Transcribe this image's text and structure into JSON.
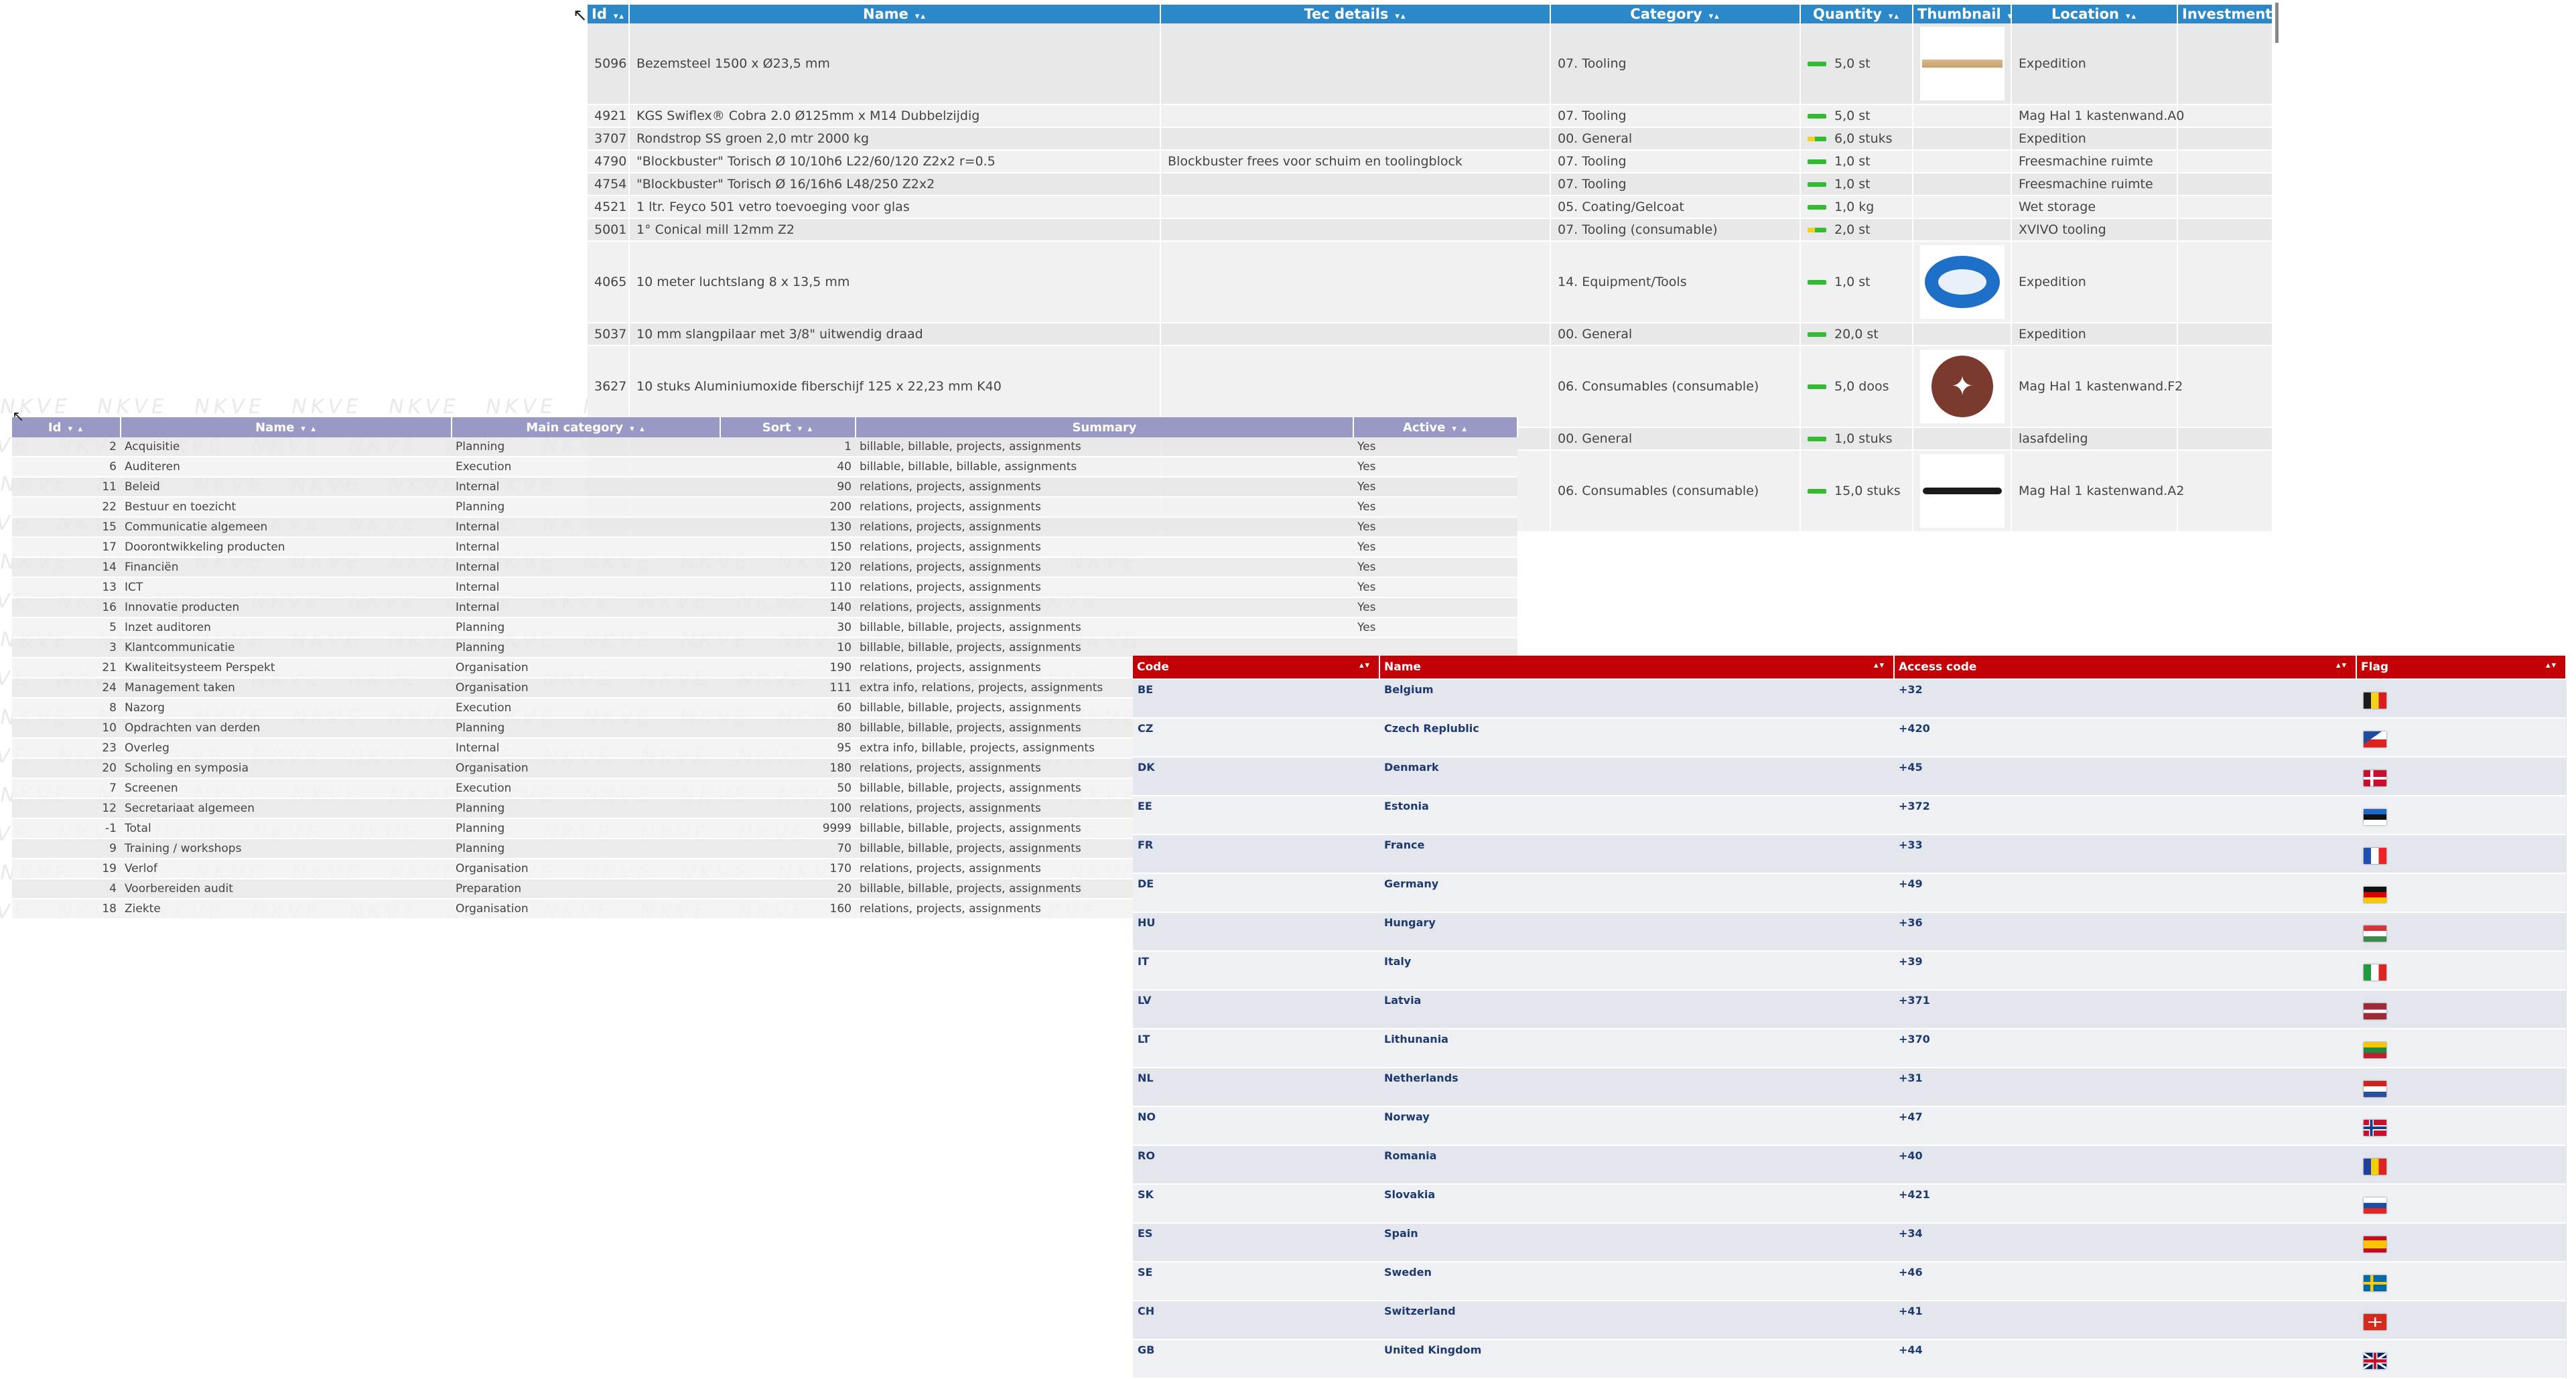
{
  "articles": {
    "headers": [
      "Id",
      "Name",
      "Tec details",
      "Category",
      "Quantity",
      "Thumbnail",
      "Location",
      "Investment"
    ],
    "rows": [
      {
        "id": "5096",
        "name": "Bezemsteel 1500 x Ø23,5 mm",
        "tec": "",
        "category": "07. Tooling",
        "qty": "5,0 st",
        "location": "Expedition",
        "thumb": "stick-image"
      },
      {
        "id": "4921",
        "name": "KGS Swiflex® Cobra 2.0 Ø125mm x M14 Dubbelzijdig",
        "tec": "",
        "category": "07. Tooling",
        "qty": "5,0 st",
        "location": "Mag Hal 1 kastenwand.A0",
        "thumb": ""
      },
      {
        "id": "3707",
        "name": "Rondstrop SS groen 2,0 mtr 2000 kg",
        "tec": "",
        "category": "00. General",
        "qty": "6,0 stuks",
        "location": "Expedition",
        "thumb": ""
      },
      {
        "id": "4790",
        "name": "\"Blockbuster\" Torisch Ø 10/10h6 L22/60/120 Z2x2 r=0.5",
        "tec": "Blockbuster frees voor schuim en toolingblock",
        "category": "07. Tooling",
        "qty": "1,0 st",
        "location": "Freesmachine ruimte",
        "thumb": ""
      },
      {
        "id": "4754",
        "name": "\"Blockbuster\" Torisch Ø 16/16h6 L48/250 Z2x2",
        "tec": "",
        "category": "07. Tooling",
        "qty": "1,0 st",
        "location": "Freesmachine ruimte",
        "thumb": ""
      },
      {
        "id": "4521",
        "name": "1 ltr. Feyco 501 vetro toevoeging voor glas",
        "tec": "",
        "category": "05. Coating/Gelcoat",
        "qty": "1,0 kg",
        "location": "Wet storage",
        "thumb": ""
      },
      {
        "id": "5001",
        "name": "1° Conical mill 12mm Z2",
        "tec": "",
        "category": "07. Tooling (consumable)",
        "qty": "2,0 st",
        "location": "XVIVO tooling",
        "thumb": ""
      },
      {
        "id": "4065",
        "name": "10 meter luchtslang 8 x 13,5 mm",
        "tec": "",
        "category": "14. Equipment/Tools",
        "qty": "1,0 st",
        "location": "Expedition",
        "thumb": "hose-image"
      },
      {
        "id": "5037",
        "name": "10 mm slangpilaar met 3/8\" uitwendig draad",
        "tec": "",
        "category": "00. General",
        "qty": "20,0 st",
        "location": "Expedition",
        "thumb": ""
      },
      {
        "id": "3627",
        "name": "10 stuks Aluminiumoxide fiberschijf 125 x 22,23 mm K40",
        "tec": "",
        "category": "06. Consumables (consumable)",
        "qty": "5,0 doos",
        "location": "Mag Hal 1 kastenwand.F2",
        "thumb": "disc-image"
      },
      {
        "id": "",
        "name": "",
        "tec": "",
        "category": "00. General",
        "qty": "1,0 stuks",
        "location": "lasafdeling",
        "thumb": ""
      },
      {
        "id": "",
        "name": "",
        "tec": "",
        "category": "06. Consumables (consumable)",
        "qty": "15,0 stuks",
        "location": "Mag Hal 1 kastenwand.A2",
        "thumb": "strip-image"
      }
    ]
  },
  "activities": {
    "headers": [
      "Id",
      "Name",
      "Main category",
      "Sort",
      "Summary",
      "Active"
    ],
    "rows": [
      {
        "id": "2",
        "name": "Acquisitie",
        "main": "Planning",
        "sort": "1",
        "summary": "billable, billable, projects, assignments",
        "active": "Yes"
      },
      {
        "id": "6",
        "name": "Auditeren",
        "main": "Execution",
        "sort": "40",
        "summary": "billable, billable, billable, assignments",
        "active": "Yes"
      },
      {
        "id": "11",
        "name": "Beleid",
        "main": "Internal",
        "sort": "90",
        "summary": "relations, projects, assignments",
        "active": "Yes"
      },
      {
        "id": "22",
        "name": "Bestuur en toezicht",
        "main": "Planning",
        "sort": "200",
        "summary": "relations, projects, assignments",
        "active": "Yes"
      },
      {
        "id": "15",
        "name": "Communicatie algemeen",
        "main": "Internal",
        "sort": "130",
        "summary": "relations, projects, assignments",
        "active": "Yes"
      },
      {
        "id": "17",
        "name": "Doorontwikkeling producten",
        "main": "Internal",
        "sort": "150",
        "summary": "relations, projects, assignments",
        "active": "Yes"
      },
      {
        "id": "14",
        "name": "Financiën",
        "main": "Internal",
        "sort": "120",
        "summary": "relations, projects, assignments",
        "active": "Yes"
      },
      {
        "id": "13",
        "name": "ICT",
        "main": "Internal",
        "sort": "110",
        "summary": "relations, projects, assignments",
        "active": "Yes"
      },
      {
        "id": "16",
        "name": "Innovatie producten",
        "main": "Internal",
        "sort": "140",
        "summary": "relations, projects, assignments",
        "active": "Yes"
      },
      {
        "id": "5",
        "name": "Inzet auditoren",
        "main": "Planning",
        "sort": "30",
        "summary": "billable, billable, projects, assignments",
        "active": "Yes"
      },
      {
        "id": "3",
        "name": "Klantcommunicatie",
        "main": "Planning",
        "sort": "10",
        "summary": "billable, billable, projects, assignments",
        "active": ""
      },
      {
        "id": "21",
        "name": "Kwaliteitsysteem Perspekt",
        "main": "Organisation",
        "sort": "190",
        "summary": "relations, projects, assignments",
        "active": ""
      },
      {
        "id": "24",
        "name": "Management taken",
        "main": "Organisation",
        "sort": "111",
        "summary": "extra info, relations, projects, assignments",
        "active": ""
      },
      {
        "id": "8",
        "name": "Nazorg",
        "main": "Execution",
        "sort": "60",
        "summary": "billable, billable, projects, assignments",
        "active": ""
      },
      {
        "id": "10",
        "name": "Opdrachten van derden",
        "main": "Planning",
        "sort": "80",
        "summary": "billable, billable, projects, assignments",
        "active": ""
      },
      {
        "id": "23",
        "name": "Overleg",
        "main": "Internal",
        "sort": "95",
        "summary": "extra info, billable, projects, assignments",
        "active": ""
      },
      {
        "id": "20",
        "name": "Scholing en symposia",
        "main": "Organisation",
        "sort": "180",
        "summary": "relations, projects, assignments",
        "active": ""
      },
      {
        "id": "7",
        "name": "Screenen",
        "main": "Execution",
        "sort": "50",
        "summary": "billable, billable, projects, assignments",
        "active": ""
      },
      {
        "id": "12",
        "name": "Secretariaat algemeen",
        "main": "Planning",
        "sort": "100",
        "summary": "relations, projects, assignments",
        "active": ""
      },
      {
        "id": "-1",
        "name": "Total",
        "main": "Planning",
        "sort": "9999",
        "summary": "billable, billable, projects, assignments",
        "active": ""
      },
      {
        "id": "9",
        "name": "Training / workshops",
        "main": "Planning",
        "sort": "70",
        "summary": "billable, billable, projects, assignments",
        "active": ""
      },
      {
        "id": "19",
        "name": "Verlof",
        "main": "Organisation",
        "sort": "170",
        "summary": "relations, projects, assignments",
        "active": ""
      },
      {
        "id": "4",
        "name": "Voorbereiden audit",
        "main": "Preparation",
        "sort": "20",
        "summary": "billable, billable, projects, assignments",
        "active": ""
      },
      {
        "id": "18",
        "name": "Ziekte",
        "main": "Organisation",
        "sort": "160",
        "summary": "relations, projects, assignments",
        "active": ""
      }
    ]
  },
  "countries": {
    "headers": [
      "Code",
      "Name",
      "Access code",
      "Flag"
    ],
    "rows": [
      {
        "code": "BE",
        "name": "Belgium",
        "access": "+32",
        "flag": "belgium-flag-icon"
      },
      {
        "code": "CZ",
        "name": "Czech Replublic",
        "access": "+420",
        "flag": "czech-flag-icon"
      },
      {
        "code": "DK",
        "name": "Denmark",
        "access": "+45",
        "flag": "denmark-flag-icon"
      },
      {
        "code": "EE",
        "name": "Estonia",
        "access": "+372",
        "flag": "estonia-flag-icon"
      },
      {
        "code": "FR",
        "name": "France",
        "access": "+33",
        "flag": "france-flag-icon"
      },
      {
        "code": "DE",
        "name": "Germany",
        "access": "+49",
        "flag": "germany-flag-icon"
      },
      {
        "code": "HU",
        "name": "Hungary",
        "access": "+36",
        "flag": "hungary-flag-icon"
      },
      {
        "code": "IT",
        "name": "Italy",
        "access": "+39",
        "flag": "italy-flag-icon"
      },
      {
        "code": "LV",
        "name": "Latvia",
        "access": "+371",
        "flag": "latvia-flag-icon"
      },
      {
        "code": "LT",
        "name": "Lithunania",
        "access": "+370",
        "flag": "lithuania-flag-icon"
      },
      {
        "code": "NL",
        "name": "Netherlands",
        "access": "+31",
        "flag": "netherlands-flag-icon"
      },
      {
        "code": "NO",
        "name": "Norway",
        "access": "+47",
        "flag": "norway-flag-icon"
      },
      {
        "code": "RO",
        "name": "Romania",
        "access": "+40",
        "flag": "romania-flag-icon"
      },
      {
        "code": "SK",
        "name": "Slovakia",
        "access": "+421",
        "flag": "slovakia-flag-icon"
      },
      {
        "code": "ES",
        "name": "Spain",
        "access": "+34",
        "flag": "spain-flag-icon"
      },
      {
        "code": "SE",
        "name": "Sweden",
        "access": "+46",
        "flag": "sweden-flag-icon"
      },
      {
        "code": "CH",
        "name": "Switzerland",
        "access": "+41",
        "flag": "switzerland-flag-icon"
      },
      {
        "code": "GB",
        "name": "United Kingdom",
        "access": "+44",
        "flag": "uk-flag-icon"
      }
    ]
  },
  "watermark_text": "NKVE",
  "colors": {
    "articles_header": "#2b88c9",
    "activities_header": "#9a99c6",
    "countries_header": "#c30006",
    "quantity_bar": "#33bb33"
  }
}
